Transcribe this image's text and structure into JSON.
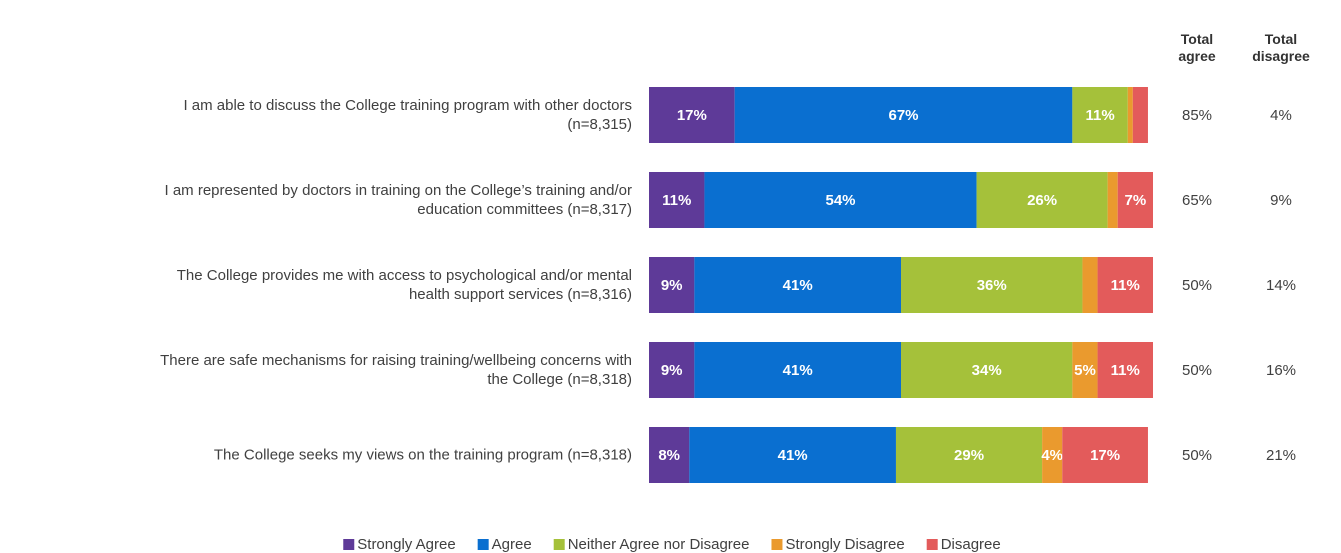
{
  "chart_data": {
    "type": "stacked_barh",
    "categories": [
      "I am able to discuss the College training program with other doctors\n(n=8,315)",
      "I am represented by doctors in training on the College’s training and/or\neducation committees (n=8,317)",
      "The College provides me with access to psychological and/or mental\nhealth support services (n=8,316)",
      "There are safe mechanisms for raising training/wellbeing concerns with\nthe College (n=8,318)",
      "The College seeks my views on the training program (n=8,318)"
    ],
    "series": [
      {
        "name": "Strongly Agree",
        "color": "#5e3a98",
        "values": [
          17,
          11,
          9,
          9,
          8
        ],
        "value_labels": [
          "17%",
          "11%",
          "9%",
          "9%",
          "8%"
        ]
      },
      {
        "name": "Agree",
        "color": "#0a6fd0",
        "values": [
          67,
          54,
          41,
          41,
          41
        ],
        "value_labels": [
          "67%",
          "54%",
          "41%",
          "41%",
          "41%"
        ]
      },
      {
        "name": "Neither Agree nor Disagree",
        "color": "#a5c13a",
        "values": [
          11,
          26,
          36,
          34,
          29
        ],
        "value_labels": [
          "11%",
          "26%",
          "36%",
          "34%",
          "29%"
        ]
      },
      {
        "name": "Strongly Disagree",
        "color": "#ea9a2e",
        "values": [
          1,
          2,
          3,
          5,
          4
        ],
        "value_labels": [
          null,
          null,
          null,
          "5%",
          "4%"
        ]
      },
      {
        "name": "Disagree",
        "color": "#e35b5b",
        "values": [
          3,
          7,
          11,
          11,
          17
        ],
        "value_labels": [
          null,
          "7%",
          "11%",
          "11%",
          "17%"
        ]
      }
    ],
    "xlim": [
      0,
      100
    ],
    "total_agree": {
      "header": "Total\nagree",
      "values": [
        85,
        65,
        50,
        50,
        50
      ],
      "value_labels": [
        "85%",
        "65%",
        "50%",
        "50%",
        "50%"
      ]
    },
    "total_disagree": {
      "header": "Total\ndisagree",
      "values": [
        4,
        9,
        14,
        16,
        21
      ],
      "value_labels": [
        "4%",
        "9%",
        "14%",
        "16%",
        "21%"
      ]
    },
    "legend": "bottom"
  }
}
